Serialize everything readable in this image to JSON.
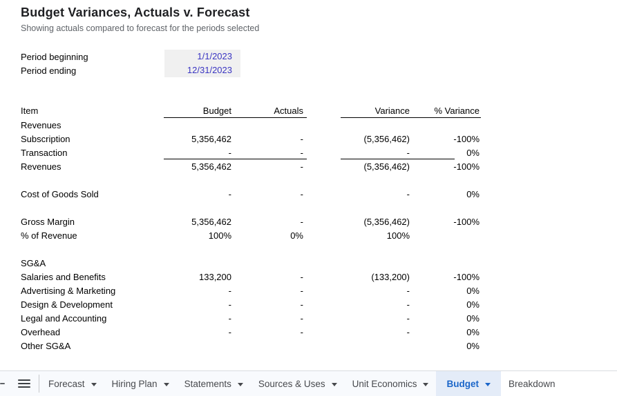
{
  "header": {
    "title": "Budget Variances, Actuals v. Forecast",
    "subtitle": "Showing actuals compared to forecast for the periods selected"
  },
  "period": {
    "rows": [
      {
        "label": "Period beginning",
        "value": "1/1/2023"
      },
      {
        "label": "Period ending",
        "value": "12/31/2023"
      }
    ]
  },
  "table": {
    "columns": {
      "item": "Item",
      "budget": "Budget",
      "actuals": "Actuals",
      "variance": "Variance",
      "pct_variance": "% Variance"
    },
    "rows": [
      {
        "kind": "section",
        "label": "Revenues"
      },
      {
        "kind": "data",
        "label": "Subscription",
        "budget": "5,356,462",
        "actuals": "-",
        "variance": "(5,356,462)",
        "pct": "-100%"
      },
      {
        "kind": "data",
        "label": "Transaction",
        "budget": "-",
        "actuals": "-",
        "variance": "-",
        "pct": "0%",
        "rule_below": true
      },
      {
        "kind": "data",
        "label": "Revenues",
        "budget": "5,356,462",
        "actuals": "-",
        "variance": "(5,356,462)",
        "pct": "-100%"
      },
      {
        "kind": "spacer"
      },
      {
        "kind": "data",
        "label": "Cost of Goods Sold",
        "budget": "-",
        "actuals": "-",
        "variance": "-",
        "pct": "0%"
      },
      {
        "kind": "spacer"
      },
      {
        "kind": "data",
        "label": "Gross Margin",
        "budget": "5,356,462",
        "actuals": "-",
        "variance": "(5,356,462)",
        "pct": "-100%"
      },
      {
        "kind": "data",
        "label": "% of Revenue",
        "budget": "100%",
        "actuals": "0%",
        "variance": "100%",
        "pct": ""
      },
      {
        "kind": "spacer"
      },
      {
        "kind": "section",
        "label": "SG&A"
      },
      {
        "kind": "data",
        "label": "Salaries and Benefits",
        "budget": "133,200",
        "actuals": "-",
        "variance": "(133,200)",
        "pct": "-100%"
      },
      {
        "kind": "data",
        "label": "Advertising & Marketing",
        "budget": "-",
        "actuals": "-",
        "variance": "-",
        "pct": "0%"
      },
      {
        "kind": "data",
        "label": "Design & Development",
        "budget": "-",
        "actuals": "-",
        "variance": "-",
        "pct": "0%"
      },
      {
        "kind": "data",
        "label": "Legal and Accounting",
        "budget": "-",
        "actuals": "-",
        "variance": "-",
        "pct": "0%"
      },
      {
        "kind": "data",
        "label": "Overhead",
        "budget": "-",
        "actuals": "-",
        "variance": "-",
        "pct": "0%"
      },
      {
        "kind": "data",
        "label": "Other SG&A",
        "budget": "",
        "actuals": "",
        "variance": "",
        "pct": "0%"
      }
    ]
  },
  "tabbar": {
    "tabs": [
      {
        "label": "Forecast",
        "has_menu": true,
        "active": false
      },
      {
        "label": "Hiring Plan",
        "has_menu": true,
        "active": false
      },
      {
        "label": "Statements",
        "has_menu": true,
        "active": false
      },
      {
        "label": "Sources & Uses",
        "has_menu": true,
        "active": false
      },
      {
        "label": "Unit Economics",
        "has_menu": true,
        "active": false
      },
      {
        "label": "Budget",
        "has_menu": true,
        "active": true
      },
      {
        "label": "Breakdown",
        "has_menu": false,
        "active": false
      }
    ]
  },
  "colors": {
    "input_text_blue": "#3a35c2",
    "input_cell_bg": "#f0f0f0",
    "active_tab_text": "#1b66c9",
    "active_tab_bg": "#e4ecf8",
    "tabbar_bg": "#f8fafd",
    "subtitle_gray": "#5f6368"
  }
}
